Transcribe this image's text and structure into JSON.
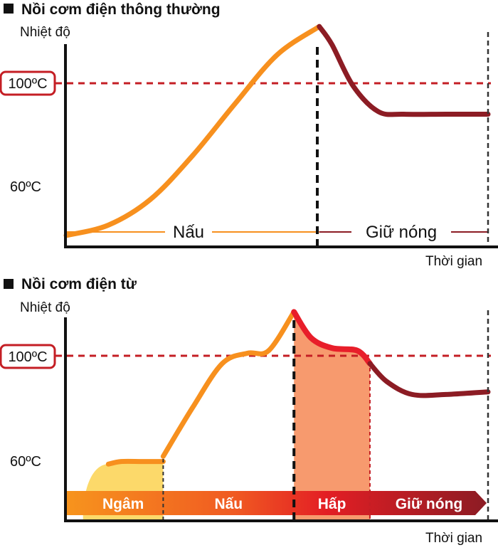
{
  "colors": {
    "heating": "#f7901e",
    "keep_warm": "#8c1c24",
    "steam_fill": "#f79a6e",
    "steam_line": "#e81e2a",
    "soak_fill": "#fcd96a",
    "ref_line": "#c41e24",
    "axis": "#111111"
  },
  "chart_data": [
    {
      "type": "line",
      "title": "Nồi cơm điện thông thường",
      "ylabel": "Nhiệt độ",
      "xlabel": "Thời gian",
      "ylim": [
        35,
        125
      ],
      "y_ticks": [
        {
          "value": 60,
          "label": "60ºC"
        }
      ],
      "reference_line": {
        "value": 100,
        "label": "100ºC"
      },
      "series": [
        {
          "phase": "heating",
          "x": [
            0,
            10,
            20,
            30,
            40,
            50,
            60
          ],
          "y": [
            41,
            45,
            55,
            72,
            92,
            111,
            122
          ]
        },
        {
          "phase": "keep_warm",
          "x": [
            60,
            63,
            68,
            74,
            80,
            90,
            100
          ],
          "y": [
            122,
            115,
            99,
            89,
            88,
            88,
            88
          ]
        }
      ],
      "phases": [
        {
          "label": "Nấu",
          "from": 0,
          "to": 60
        },
        {
          "label": "Giữ nóng",
          "from": 60,
          "to": 100
        }
      ],
      "divider_x": 60
    },
    {
      "type": "line",
      "title": "Nồi cơm điện từ",
      "ylabel": "Nhiệt độ",
      "xlabel": "Thời gian",
      "ylim": [
        35,
        125
      ],
      "y_ticks": [
        {
          "value": 60,
          "label": "60ºC"
        }
      ],
      "reference_line": {
        "value": 100,
        "label": "100ºC"
      },
      "series": [
        {
          "phase": "soak",
          "x": [
            10,
            13,
            18,
            23
          ],
          "y": [
            58,
            59,
            59,
            59
          ]
        },
        {
          "phase": "heating",
          "x": [
            23,
            30,
            37,
            43,
            48,
            54
          ],
          "y": [
            61,
            80,
            97,
            101,
            102,
            117
          ]
        },
        {
          "phase": "steam",
          "x": [
            54,
            58,
            63,
            69,
            72
          ],
          "y": [
            117,
            107,
            103,
            102,
            97
          ]
        },
        {
          "phase": "keep_warm",
          "x": [
            72,
            76,
            82,
            90,
            100
          ],
          "y": [
            97,
            90,
            85,
            85,
            86
          ]
        }
      ],
      "phases": [
        {
          "label": "Ngâm",
          "from": 0,
          "to": 23
        },
        {
          "label": "Nấu",
          "from": 23,
          "to": 54
        },
        {
          "label": "Hấp",
          "from": 54,
          "to": 72
        },
        {
          "label": "Giữ nóng",
          "from": 72,
          "to": 100
        }
      ],
      "dividers_x": [
        23,
        54,
        72
      ]
    }
  ]
}
